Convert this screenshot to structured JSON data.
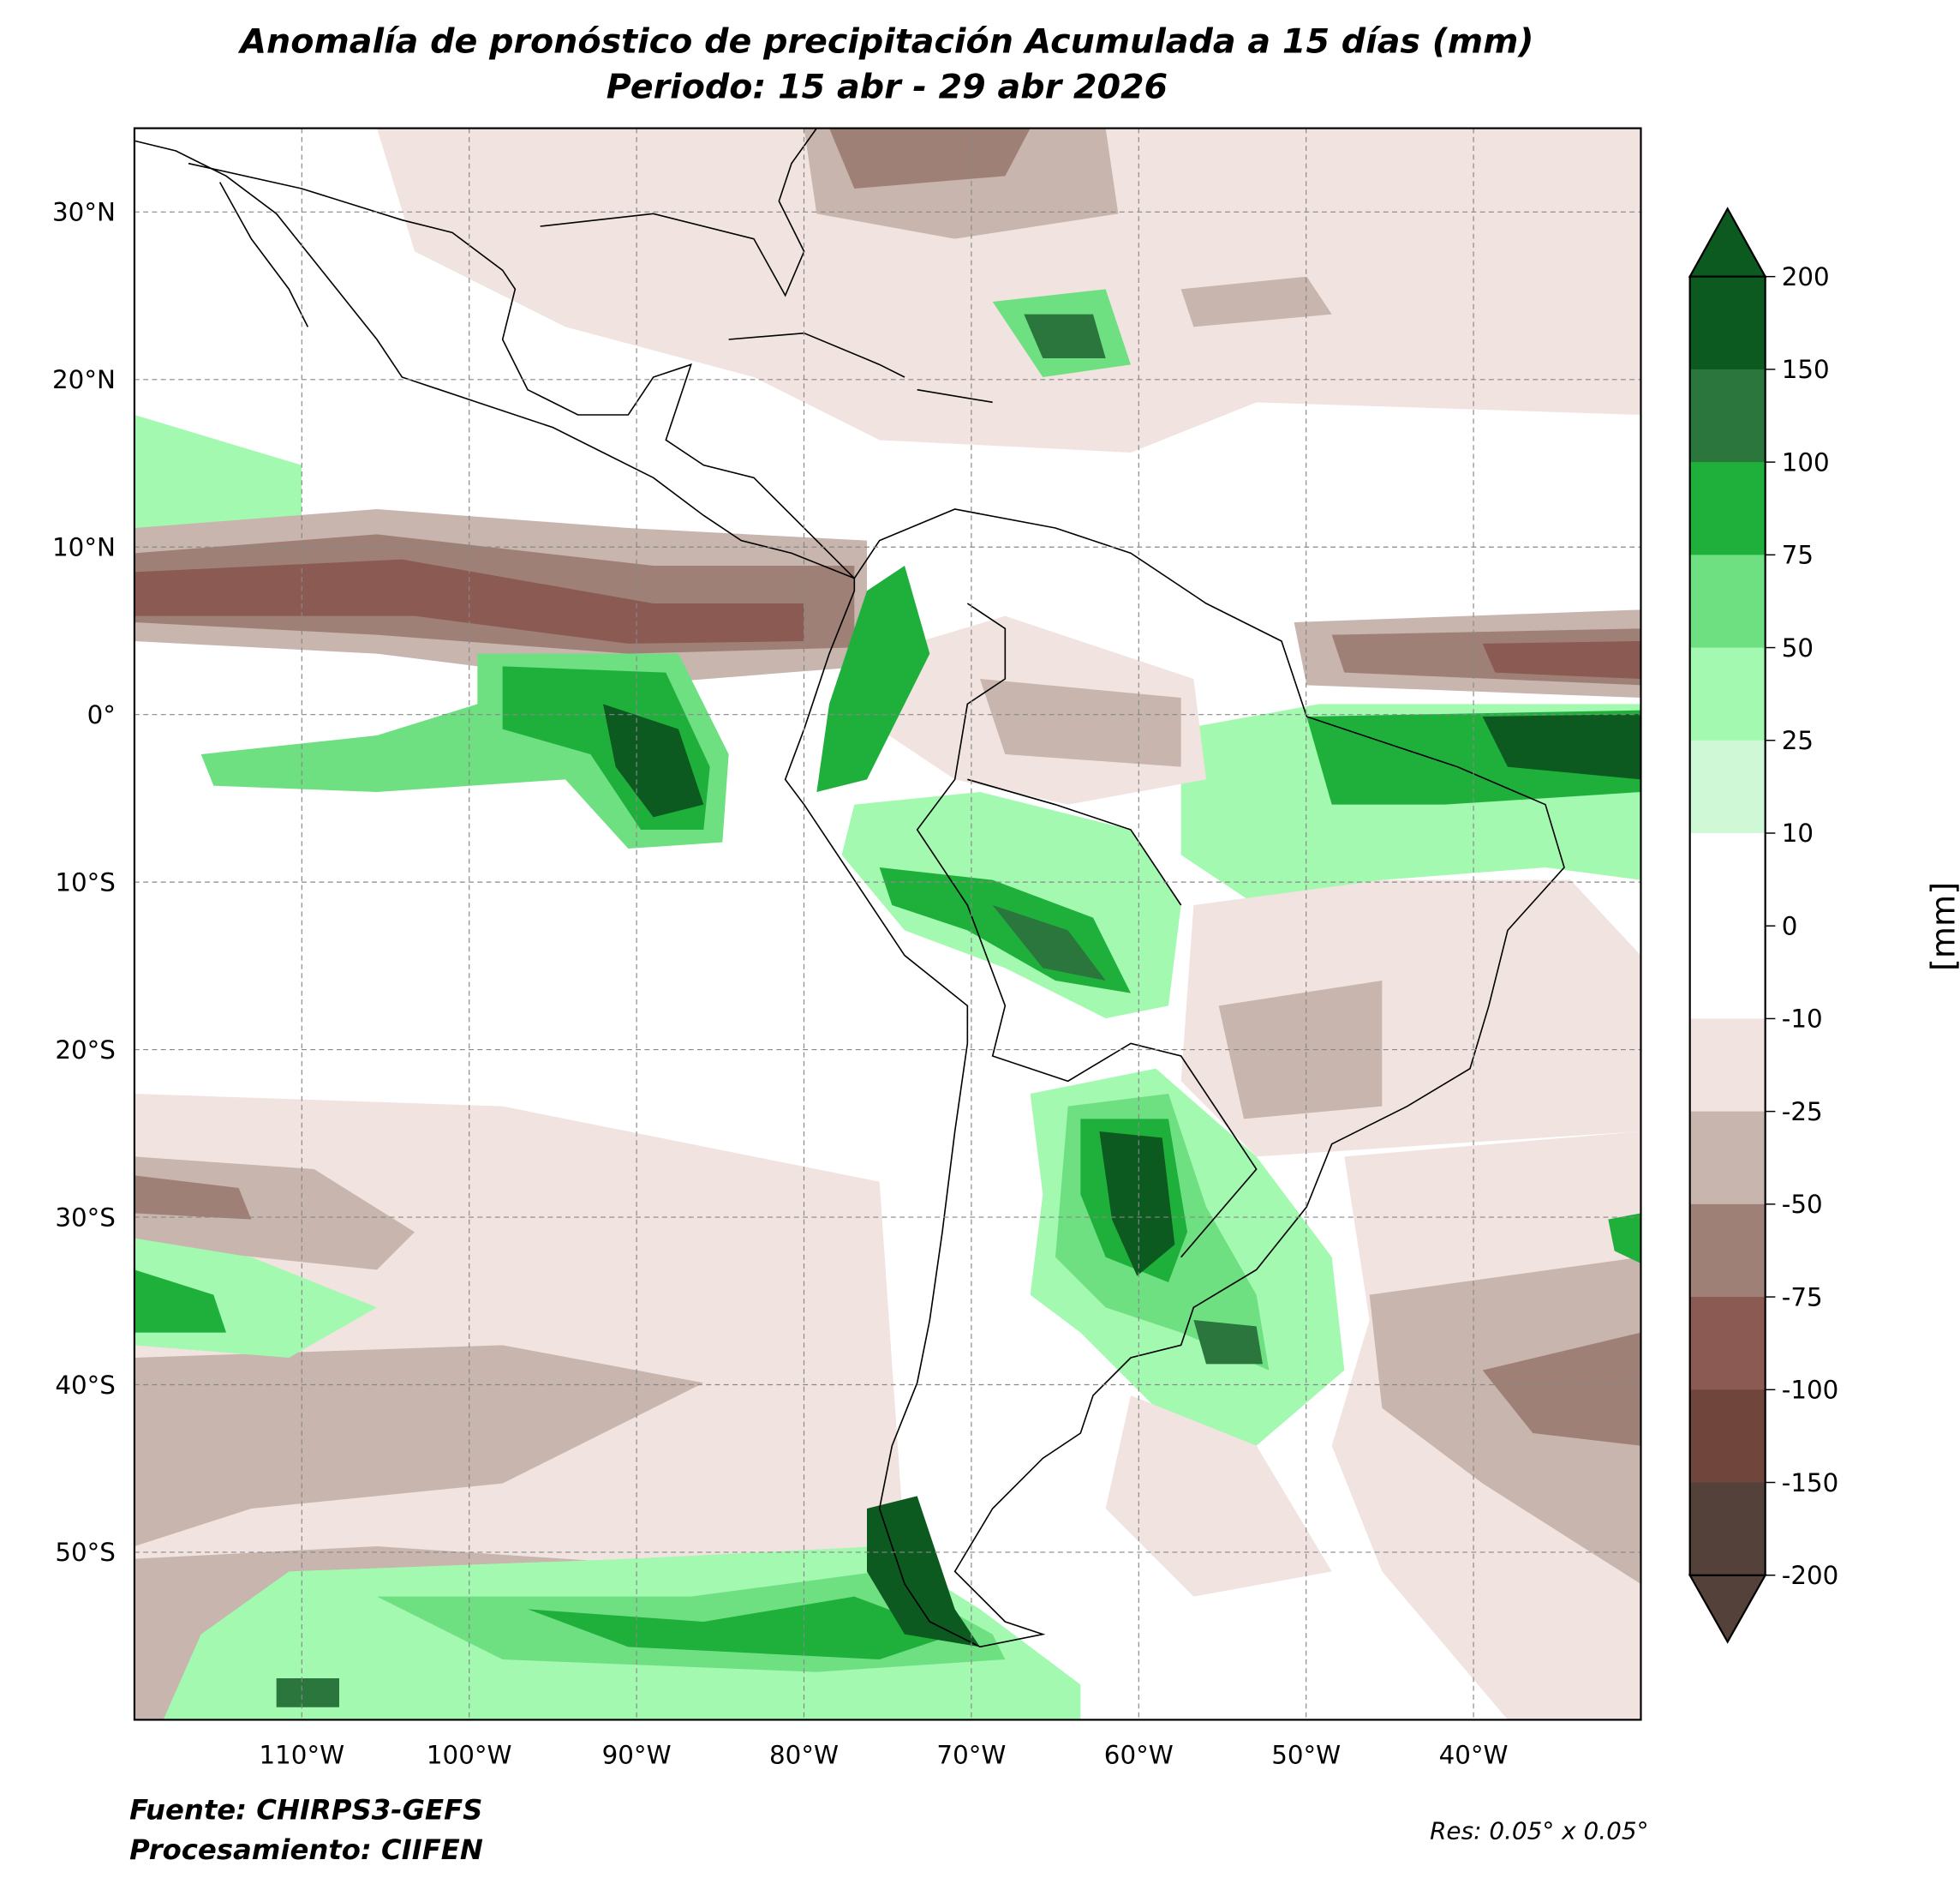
{
  "title": {
    "line1": "Anomalía de pronóstico de precipitación Acumulada a 15 días (mm)",
    "line2": "Periodo: 15 abr - 29 abr 2026"
  },
  "map": {
    "lon_range": [
      -120,
      -30
    ],
    "lat_range": [
      -60,
      35
    ],
    "lon_ticks": [
      {
        "v": -110,
        "label": "110°W"
      },
      {
        "v": -100,
        "label": "100°W"
      },
      {
        "v": -90,
        "label": "90°W"
      },
      {
        "v": -80,
        "label": "80°W"
      },
      {
        "v": -70,
        "label": "70°W"
      },
      {
        "v": -60,
        "label": "60°W"
      },
      {
        "v": -50,
        "label": "50°W"
      },
      {
        "v": -40,
        "label": "40°W"
      }
    ],
    "lat_ticks": [
      {
        "v": 30,
        "label": "30°N"
      },
      {
        "v": 20,
        "label": "20°N"
      },
      {
        "v": 10,
        "label": "10°N"
      },
      {
        "v": 0,
        "label": "0°"
      },
      {
        "v": -10,
        "label": "10°S"
      },
      {
        "v": -20,
        "label": "20°S"
      },
      {
        "v": -30,
        "label": "30°S"
      },
      {
        "v": -40,
        "label": "40°S"
      },
      {
        "v": -50,
        "label": "50°S"
      }
    ]
  },
  "colorbar": {
    "unit_label": "[mm]",
    "ticks": [
      "200",
      "150",
      "100",
      "75",
      "50",
      "25",
      "10",
      "0",
      "-10",
      "-25",
      "-50",
      "-75",
      "-100",
      "-150",
      "-200"
    ],
    "colors": [
      "#0c5a1f",
      "#2a763c",
      "#1fb03c",
      "#6ee081",
      "#a3f9b0",
      "#cff8d6",
      "#ffffff",
      "#ffffff",
      "#f1e3e0",
      "#c7b5ae",
      "#9f8076",
      "#8b5a52",
      "#70463c",
      "#54413a"
    ],
    "over_color": "#0c5a1f",
    "under_color": "#54413a"
  },
  "footer": {
    "source": "Fuente: CHIRPS3-GEFS",
    "processing": "Procesamiento: CIIFEN",
    "resolution": "Res: 0.05° x 0.05°"
  }
}
